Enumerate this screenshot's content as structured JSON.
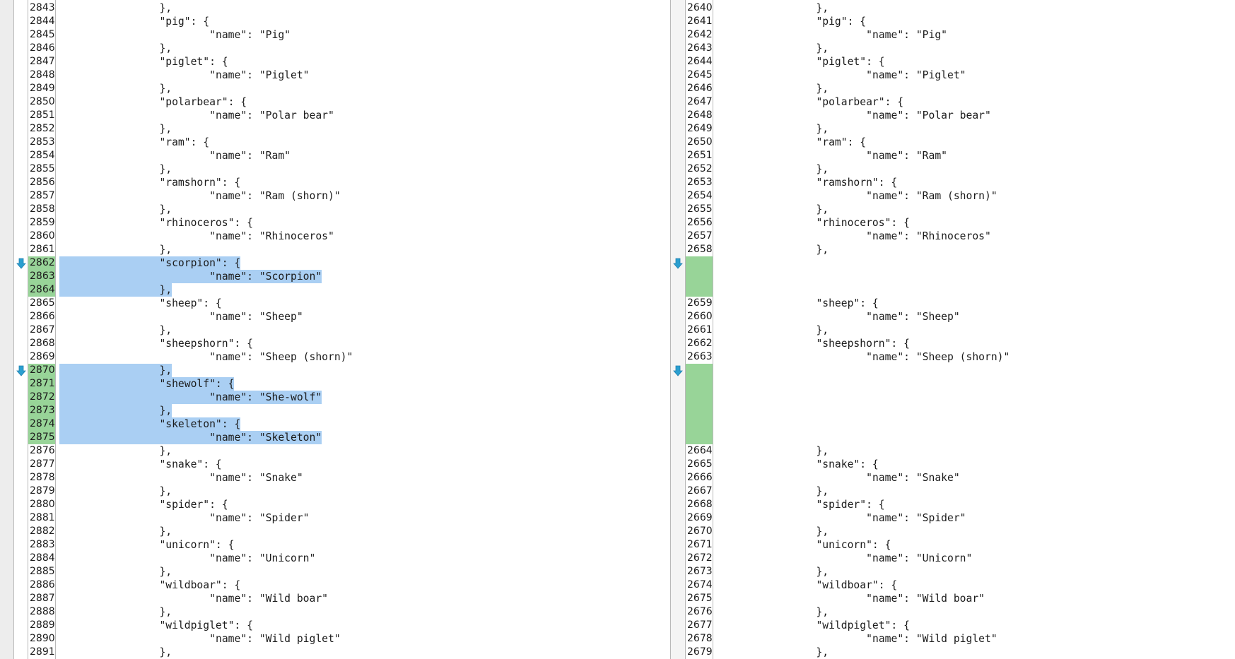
{
  "colors": {
    "changed_line_number": "#98d498",
    "selection": "#aacff3",
    "arrow": "#2a9fd0"
  },
  "left": {
    "lines": [
      {
        "num": "2843",
        "text": "},",
        "changed": false
      },
      {
        "num": "2844",
        "text": "\"pig\": {",
        "changed": false
      },
      {
        "num": "2845",
        "text": "\"name\": \"Pig\"",
        "changed": false
      },
      {
        "num": "2846",
        "text": "},",
        "changed": false
      },
      {
        "num": "2847",
        "text": "\"piglet\": {",
        "changed": false
      },
      {
        "num": "2848",
        "text": "\"name\": \"Piglet\"",
        "changed": false
      },
      {
        "num": "2849",
        "text": "},",
        "changed": false
      },
      {
        "num": "2850",
        "text": "\"polarbear\": {",
        "changed": false
      },
      {
        "num": "2851",
        "text": "\"name\": \"Polar bear\"",
        "changed": false
      },
      {
        "num": "2852",
        "text": "},",
        "changed": false
      },
      {
        "num": "2853",
        "text": "\"ram\": {",
        "changed": false
      },
      {
        "num": "2854",
        "text": "\"name\": \"Ram\"",
        "changed": false
      },
      {
        "num": "2855",
        "text": "},",
        "changed": false
      },
      {
        "num": "2856",
        "text": "\"ramshorn\": {",
        "changed": false
      },
      {
        "num": "2857",
        "text": "\"name\": \"Ram (shorn)\"",
        "changed": false
      },
      {
        "num": "2858",
        "text": "},",
        "changed": false
      },
      {
        "num": "2859",
        "text": "\"rhinoceros\": {",
        "changed": false
      },
      {
        "num": "2860",
        "text": "\"name\": \"Rhinoceros\"",
        "changed": false
      },
      {
        "num": "2861",
        "text": "},",
        "changed": false
      },
      {
        "num": "2862",
        "text": "\"scorpion\": {",
        "changed": true
      },
      {
        "num": "2863",
        "text": "\"name\": \"Scorpion\"",
        "changed": true
      },
      {
        "num": "2864",
        "text": "},",
        "changed": true
      },
      {
        "num": "2865",
        "text": "\"sheep\": {",
        "changed": false
      },
      {
        "num": "2866",
        "text": "\"name\": \"Sheep\"",
        "changed": false
      },
      {
        "num": "2867",
        "text": "},",
        "changed": false
      },
      {
        "num": "2868",
        "text": "\"sheepshorn\": {",
        "changed": false
      },
      {
        "num": "2869",
        "text": "\"name\": \"Sheep (shorn)\"",
        "changed": false
      },
      {
        "num": "2870",
        "text": "},",
        "changed": true
      },
      {
        "num": "2871",
        "text": "\"shewolf\": {",
        "changed": true
      },
      {
        "num": "2872",
        "text": "\"name\": \"She-wolf\"",
        "changed": true
      },
      {
        "num": "2873",
        "text": "},",
        "changed": true
      },
      {
        "num": "2874",
        "text": "\"skeleton\": {",
        "changed": true
      },
      {
        "num": "2875",
        "text": "\"name\": \"Skeleton\"",
        "changed": true
      },
      {
        "num": "2876",
        "text": "},",
        "changed": false
      },
      {
        "num": "2877",
        "text": "\"snake\": {",
        "changed": false
      },
      {
        "num": "2878",
        "text": "\"name\": \"Snake\"",
        "changed": false
      },
      {
        "num": "2879",
        "text": "},",
        "changed": false
      },
      {
        "num": "2880",
        "text": "\"spider\": {",
        "changed": false
      },
      {
        "num": "2881",
        "text": "\"name\": \"Spider\"",
        "changed": false
      },
      {
        "num": "2882",
        "text": "},",
        "changed": false
      },
      {
        "num": "2883",
        "text": "\"unicorn\": {",
        "changed": false
      },
      {
        "num": "2884",
        "text": "\"name\": \"Unicorn\"",
        "changed": false
      },
      {
        "num": "2885",
        "text": "},",
        "changed": false
      },
      {
        "num": "2886",
        "text": "\"wildboar\": {",
        "changed": false
      },
      {
        "num": "2887",
        "text": "\"name\": \"Wild boar\"",
        "changed": false
      },
      {
        "num": "2888",
        "text": "},",
        "changed": false
      },
      {
        "num": "2889",
        "text": "\"wildpiglet\": {",
        "changed": false
      },
      {
        "num": "2890",
        "text": "\"name\": \"Wild piglet\"",
        "changed": false
      },
      {
        "num": "2891",
        "text": "},",
        "changed": false
      }
    ]
  },
  "right": {
    "lines": [
      {
        "num": "2640",
        "text": "},"
      },
      {
        "num": "2641",
        "text": "\"pig\": {"
      },
      {
        "num": "2642",
        "text": "\"name\": \"Pig\""
      },
      {
        "num": "2643",
        "text": "},"
      },
      {
        "num": "2644",
        "text": "\"piglet\": {"
      },
      {
        "num": "2645",
        "text": "\"name\": \"Piglet\""
      },
      {
        "num": "2646",
        "text": "},"
      },
      {
        "num": "2647",
        "text": "\"polarbear\": {"
      },
      {
        "num": "2648",
        "text": "\"name\": \"Polar bear\""
      },
      {
        "num": "2649",
        "text": "},"
      },
      {
        "num": "2650",
        "text": "\"ram\": {"
      },
      {
        "num": "2651",
        "text": "\"name\": \"Ram\""
      },
      {
        "num": "2652",
        "text": "},"
      },
      {
        "num": "2653",
        "text": "\"ramshorn\": {"
      },
      {
        "num": "2654",
        "text": "\"name\": \"Ram (shorn)\""
      },
      {
        "num": "2655",
        "text": "},"
      },
      {
        "num": "2656",
        "text": "\"rhinoceros\": {"
      },
      {
        "num": "2657",
        "text": "\"name\": \"Rhinoceros\""
      },
      {
        "num": "2658",
        "text": "},"
      },
      {
        "num": null,
        "text": ""
      },
      {
        "num": null,
        "text": ""
      },
      {
        "num": null,
        "text": ""
      },
      {
        "num": "2659",
        "text": "\"sheep\": {"
      },
      {
        "num": "2660",
        "text": "\"name\": \"Sheep\""
      },
      {
        "num": "2661",
        "text": "},"
      },
      {
        "num": "2662",
        "text": "\"sheepshorn\": {"
      },
      {
        "num": "2663",
        "text": "\"name\": \"Sheep (shorn)\""
      },
      {
        "num": null,
        "text": ""
      },
      {
        "num": null,
        "text": ""
      },
      {
        "num": null,
        "text": ""
      },
      {
        "num": null,
        "text": ""
      },
      {
        "num": null,
        "text": ""
      },
      {
        "num": null,
        "text": ""
      },
      {
        "num": "2664",
        "text": "},"
      },
      {
        "num": "2665",
        "text": "\"snake\": {"
      },
      {
        "num": "2666",
        "text": "\"name\": \"Snake\""
      },
      {
        "num": "2667",
        "text": "},"
      },
      {
        "num": "2668",
        "text": "\"spider\": {"
      },
      {
        "num": "2669",
        "text": "\"name\": \"Spider\""
      },
      {
        "num": "2670",
        "text": "},"
      },
      {
        "num": "2671",
        "text": "\"unicorn\": {"
      },
      {
        "num": "2672",
        "text": "\"name\": \"Unicorn\""
      },
      {
        "num": "2673",
        "text": "},"
      },
      {
        "num": "2674",
        "text": "\"wildboar\": {"
      },
      {
        "num": "2675",
        "text": "\"name\": \"Wild boar\""
      },
      {
        "num": "2676",
        "text": "},"
      },
      {
        "num": "2677",
        "text": "\"wildpiglet\": {"
      },
      {
        "num": "2678",
        "text": "\"name\": \"Wild piglet\""
      },
      {
        "num": "2679",
        "text": "},"
      }
    ]
  },
  "markers": [
    {
      "icon": "arrow-down-icon",
      "row_line": "2862"
    },
    {
      "icon": "arrow-down-icon",
      "row_line": "2870"
    }
  ]
}
